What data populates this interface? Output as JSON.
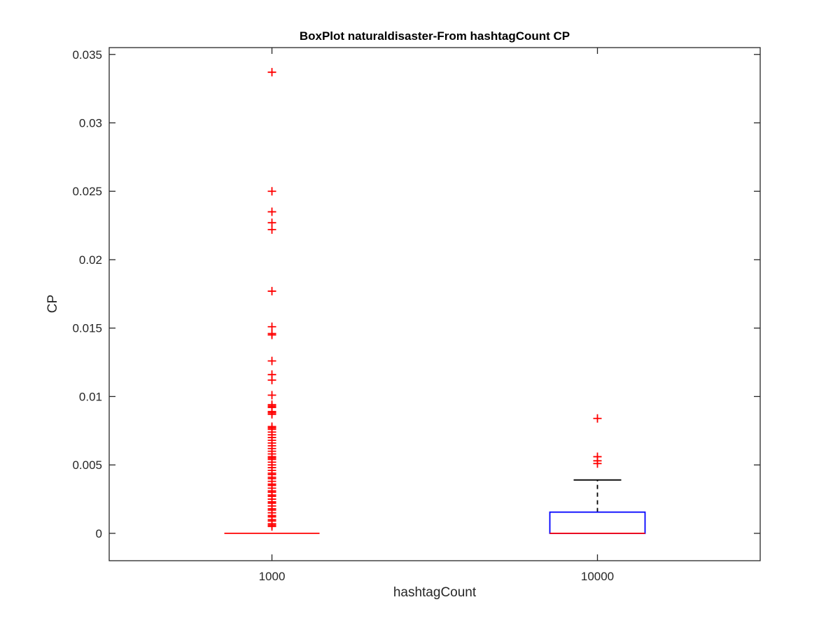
{
  "chart_data": {
    "type": "box",
    "title": "BoxPlot naturaldisaster-From hashtagCount CP",
    "xlabel": "hashtagCount",
    "ylabel": "CP",
    "ylim": [
      -0.002,
      0.0355
    ],
    "yticks": [
      0,
      0.005,
      0.01,
      0.015,
      0.02,
      0.025,
      0.03,
      0.035
    ],
    "ytick_labels": [
      "0",
      "0.005",
      "0.01",
      "0.015",
      "0.02",
      "0.025",
      "0.03",
      "0.035"
    ],
    "categories": [
      "1000",
      "10000"
    ],
    "grid": false,
    "colors": {
      "box": "#0000ff",
      "median": "#ff0000",
      "whisker": "#000000",
      "outlier": "#ff0000",
      "axes": "#262626"
    },
    "boxes": [
      {
        "category": "1000",
        "q1": 0,
        "median": 0,
        "q3": 0,
        "whisker_low": 0,
        "whisker_high": 0,
        "outliers": [
          0.0337,
          0.025,
          0.0235,
          0.0227,
          0.0222,
          0.0177,
          0.0151,
          0.0146,
          0.0145,
          0.0126,
          0.0116,
          0.0112,
          0.0101,
          0.0094,
          0.0093,
          0.0092,
          0.0089,
          0.0088,
          0.0087,
          0.0078,
          0.0077,
          0.0076,
          0.0074,
          0.0072,
          0.007,
          0.0068,
          0.0066,
          0.0064,
          0.0062,
          0.006,
          0.0058,
          0.0056,
          0.0055,
          0.0054,
          0.0052,
          0.005,
          0.0048,
          0.0046,
          0.0044,
          0.0043,
          0.0041,
          0.004,
          0.0038,
          0.0036,
          0.0035,
          0.0033,
          0.0031,
          0.003,
          0.0028,
          0.0027,
          0.0025,
          0.0023,
          0.0022,
          0.002,
          0.0018,
          0.0017,
          0.0015,
          0.0013,
          0.0012,
          0.001,
          0.0009,
          0.0007,
          0.0006,
          0.0005
        ]
      },
      {
        "category": "10000",
        "q1": 0,
        "median": 0,
        "q3": 0.00155,
        "whisker_low": 0,
        "whisker_high": 0.0039,
        "outliers": [
          0.0084,
          0.0056,
          0.0053,
          0.0051
        ]
      }
    ]
  }
}
